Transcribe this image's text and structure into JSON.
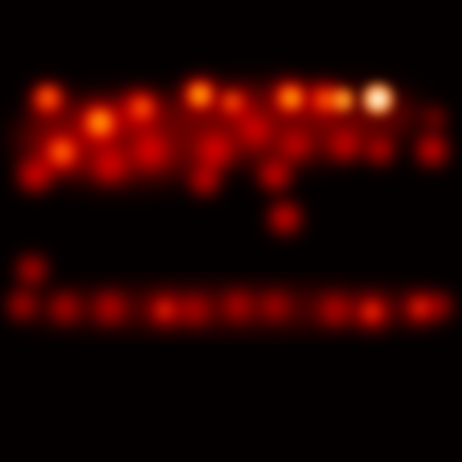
{
  "image": {
    "kind": "attention heatmap",
    "background_color": "#050000",
    "palette": [
      "#000000",
      "#5a0000",
      "#b00000",
      "#ff1a00",
      "#ff8a00",
      "#ffe27a",
      "#ffffff"
    ],
    "visible_text": []
  }
}
